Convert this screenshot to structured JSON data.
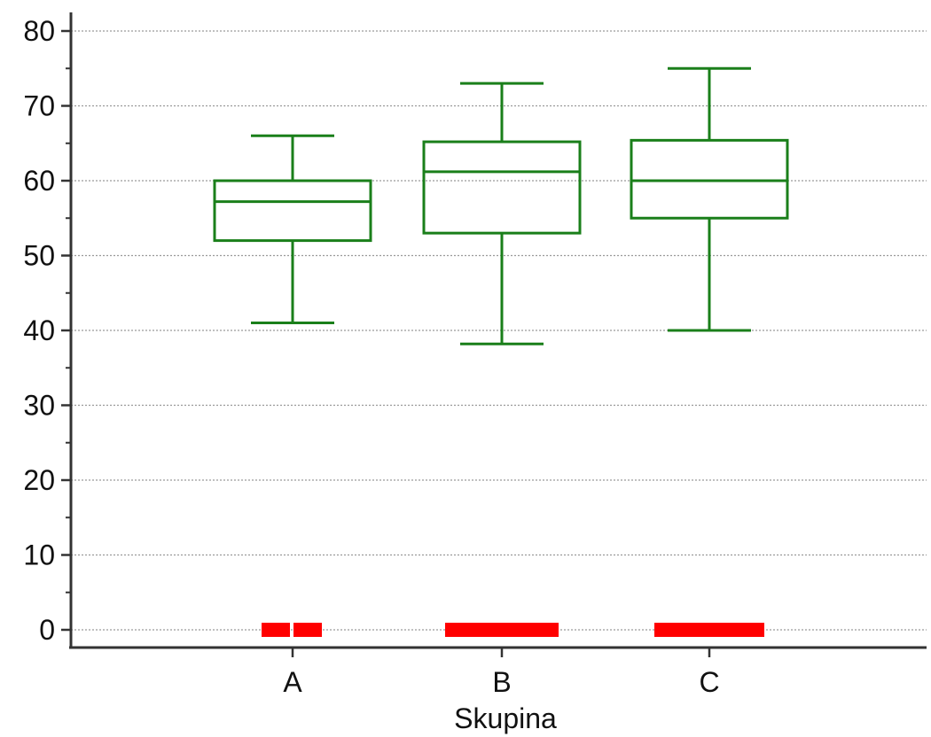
{
  "chart_data": {
    "type": "box",
    "title": "",
    "xlabel": "Skupina",
    "ylabel": "",
    "ylim": [
      -2,
      84
    ],
    "yticks": [
      0,
      10,
      20,
      30,
      40,
      50,
      60,
      70,
      80
    ],
    "ytick_labels": [
      "0",
      "10",
      "20",
      "30",
      "40",
      "50",
      "60",
      "70",
      "80"
    ],
    "grid": "horizontal-dotted",
    "categories": [
      "A",
      "B",
      "C"
    ],
    "series": [
      {
        "stats": [
          {
            "category": "A",
            "whisker_low": 41,
            "q1": 52,
            "median": 57.2,
            "q3": 60,
            "whisker_high": 66
          },
          {
            "category": "B",
            "whisker_low": 38.2,
            "q1": 53,
            "median": 61.2,
            "q3": 65.2,
            "whisker_high": 73
          },
          {
            "category": "C",
            "whisker_low": 40,
            "q1": 55,
            "median": 60,
            "q3": 65.4,
            "whisker_high": 75
          }
        ]
      }
    ],
    "baseline_markers": [
      {
        "category": "A",
        "value": 0,
        "style": "split"
      },
      {
        "category": "B",
        "value": 0,
        "style": "solid"
      },
      {
        "category": "C",
        "value": 0,
        "style": "solid"
      }
    ],
    "colors": {
      "box": "#1a7f1a",
      "marker": "#ff0000",
      "axis": "#333333",
      "grid": "#9a9a9a"
    }
  }
}
